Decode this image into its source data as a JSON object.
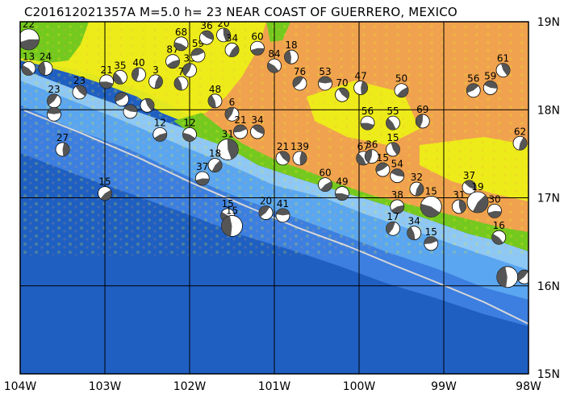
{
  "title": "C201612021357A M=5.0 h= 23 NEAR COAST OF GUERRERO, MEXICO",
  "axes": {
    "lon_min": -104,
    "lon_max": -98,
    "lat_min": 15,
    "lat_max": 19,
    "lon_labels": [
      "104W",
      "103W",
      "102W",
      "101W",
      "100W",
      "99W",
      "98W"
    ],
    "lat_labels": [
      "19N",
      "18N",
      "17N",
      "16N",
      "15N"
    ]
  },
  "colors": {
    "deep_ocean": "#1f5fc2",
    "mid_ocean": "#3d7fe0",
    "shelf": "#5aa6f0",
    "shallow": "#8ec8f5",
    "lowland": "#74c91e",
    "plain": "#ecef17",
    "upland": "#f0a24f",
    "trench": "#d8d8d8",
    "grid": "#000000",
    "beachball_fill": "#555555",
    "beachball_bg": "#ffffff"
  },
  "events": [
    {
      "lon": -103.9,
      "lat": 18.8,
      "depth": "22",
      "big": true
    },
    {
      "lon": -103.9,
      "lat": 18.47,
      "depth": "13"
    },
    {
      "lon": -103.7,
      "lat": 18.47,
      "depth": "24"
    },
    {
      "lon": -103.6,
      "lat": 18.1,
      "depth": "23"
    },
    {
      "lon": -103.6,
      "lat": 17.95,
      "depth": ""
    },
    {
      "lon": -103.3,
      "lat": 18.2,
      "depth": "23"
    },
    {
      "lon": -103.5,
      "lat": 17.55,
      "depth": "27"
    },
    {
      "lon": -103.0,
      "lat": 17.05,
      "depth": "15"
    },
    {
      "lon": -102.98,
      "lat": 18.32,
      "depth": "21"
    },
    {
      "lon": -102.82,
      "lat": 18.37,
      "depth": "35"
    },
    {
      "lon": -102.6,
      "lat": 18.4,
      "depth": "40"
    },
    {
      "lon": -102.8,
      "lat": 18.12,
      "depth": ""
    },
    {
      "lon": -102.7,
      "lat": 17.98,
      "depth": ""
    },
    {
      "lon": -102.5,
      "lat": 18.05,
      "depth": ""
    },
    {
      "lon": -102.4,
      "lat": 18.32,
      "depth": "3"
    },
    {
      "lon": -102.2,
      "lat": 18.55,
      "depth": "87"
    },
    {
      "lon": -102.1,
      "lat": 18.75,
      "depth": "68"
    },
    {
      "lon": -102.1,
      "lat": 18.3,
      "depth": "7"
    },
    {
      "lon": -102.0,
      "lat": 18.45,
      "depth": "33"
    },
    {
      "lon": -101.9,
      "lat": 18.62,
      "depth": "59"
    },
    {
      "lon": -101.8,
      "lat": 18.82,
      "depth": "36"
    },
    {
      "lon": -101.6,
      "lat": 18.85,
      "depth": "20"
    },
    {
      "lon": -101.5,
      "lat": 18.68,
      "depth": "34"
    },
    {
      "lon": -101.2,
      "lat": 18.7,
      "depth": "60"
    },
    {
      "lon": -101.0,
      "lat": 18.5,
      "depth": "84"
    },
    {
      "lon": -100.8,
      "lat": 18.6,
      "depth": "18"
    },
    {
      "lon": -100.7,
      "lat": 18.3,
      "depth": "76"
    },
    {
      "lon": -100.4,
      "lat": 18.3,
      "depth": "53"
    },
    {
      "lon": -100.2,
      "lat": 18.17,
      "depth": "70"
    },
    {
      "lon": -99.98,
      "lat": 18.25,
      "depth": "47"
    },
    {
      "lon": -99.5,
      "lat": 18.22,
      "depth": "50"
    },
    {
      "lon": -99.9,
      "lat": 17.85,
      "depth": "56"
    },
    {
      "lon": -99.6,
      "lat": 17.85,
      "depth": "55"
    },
    {
      "lon": -99.25,
      "lat": 17.87,
      "depth": "69"
    },
    {
      "lon": -98.65,
      "lat": 18.22,
      "depth": "56"
    },
    {
      "lon": -98.45,
      "lat": 18.25,
      "depth": "59"
    },
    {
      "lon": -98.3,
      "lat": 18.45,
      "depth": "61"
    },
    {
      "lon": -98.1,
      "lat": 17.62,
      "depth": "62"
    },
    {
      "lon": -102.35,
      "lat": 17.72,
      "depth": "12"
    },
    {
      "lon": -102.0,
      "lat": 17.72,
      "depth": "12"
    },
    {
      "lon": -101.7,
      "lat": 18.1,
      "depth": "48"
    },
    {
      "lon": -101.5,
      "lat": 17.95,
      "depth": "6"
    },
    {
      "lon": -101.4,
      "lat": 17.75,
      "depth": "21"
    },
    {
      "lon": -101.2,
      "lat": 17.75,
      "depth": "34"
    },
    {
      "lon": -101.55,
      "lat": 17.55,
      "depth": "31",
      "big": true
    },
    {
      "lon": -101.7,
      "lat": 17.37,
      "depth": "18"
    },
    {
      "lon": -101.85,
      "lat": 17.22,
      "depth": "37"
    },
    {
      "lon": -101.55,
      "lat": 16.8,
      "depth": "15"
    },
    {
      "lon": -101.5,
      "lat": 16.68,
      "depth": "15",
      "big": true
    },
    {
      "lon": -101.1,
      "lat": 16.83,
      "depth": "20"
    },
    {
      "lon": -100.9,
      "lat": 16.8,
      "depth": "41"
    },
    {
      "lon": -100.9,
      "lat": 17.45,
      "depth": "21"
    },
    {
      "lon": -100.7,
      "lat": 17.45,
      "depth": "139"
    },
    {
      "lon": -100.4,
      "lat": 17.15,
      "depth": "60"
    },
    {
      "lon": -100.2,
      "lat": 17.05,
      "depth": "49"
    },
    {
      "lon": -99.95,
      "lat": 17.45,
      "depth": "67"
    },
    {
      "lon": -99.85,
      "lat": 17.47,
      "depth": "36"
    },
    {
      "lon": -99.72,
      "lat": 17.32,
      "depth": "15"
    },
    {
      "lon": -99.55,
      "lat": 17.25,
      "depth": "54"
    },
    {
      "lon": -99.6,
      "lat": 17.55,
      "depth": "15"
    },
    {
      "lon": -99.32,
      "lat": 17.1,
      "depth": "32"
    },
    {
      "lon": -99.55,
      "lat": 16.9,
      "depth": "38"
    },
    {
      "lon": -99.15,
      "lat": 16.9,
      "depth": "15",
      "big": true
    },
    {
      "lon": -99.35,
      "lat": 16.6,
      "depth": "34"
    },
    {
      "lon": -99.6,
      "lat": 16.65,
      "depth": "17"
    },
    {
      "lon": -99.15,
      "lat": 16.48,
      "depth": "15"
    },
    {
      "lon": -98.7,
      "lat": 17.12,
      "depth": "37"
    },
    {
      "lon": -98.82,
      "lat": 16.9,
      "depth": "31"
    },
    {
      "lon": -98.6,
      "lat": 16.95,
      "depth": "19",
      "big": true
    },
    {
      "lon": -98.4,
      "lat": 16.85,
      "depth": "30"
    },
    {
      "lon": -98.35,
      "lat": 16.55,
      "depth": "16"
    },
    {
      "lon": -98.25,
      "lat": 16.1,
      "depth": "",
      "big": true
    },
    {
      "lon": -98.05,
      "lat": 16.1,
      "depth": ""
    }
  ]
}
